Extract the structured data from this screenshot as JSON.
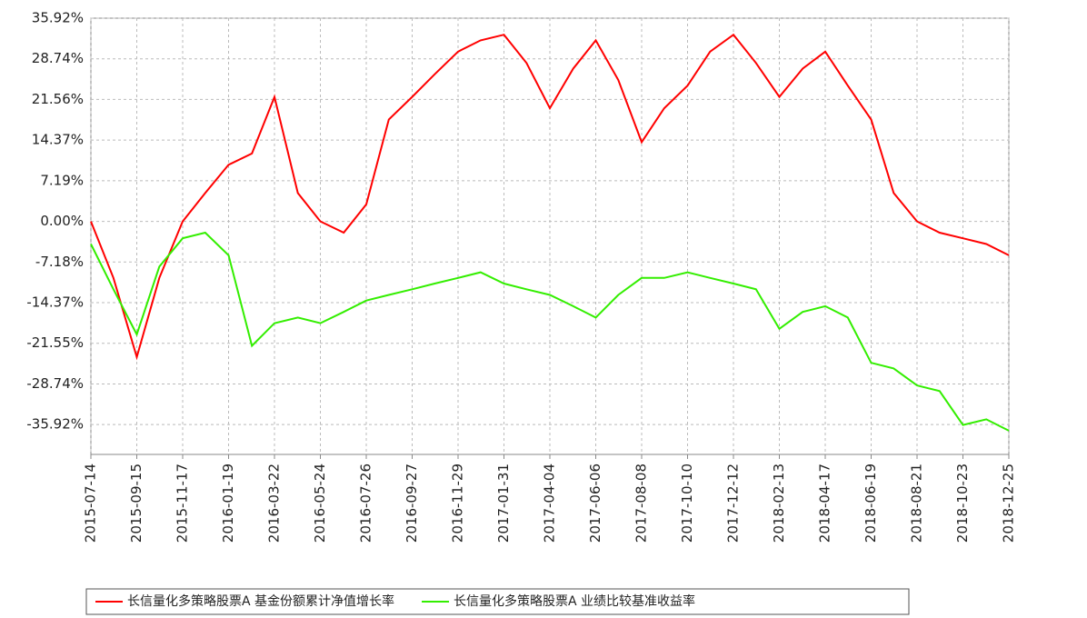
{
  "chart_data": {
    "type": "line",
    "x": [
      "2015-07-14",
      "2015-08-14",
      "2015-09-15",
      "2015-10-16",
      "2015-11-17",
      "2015-12-18",
      "2016-01-19",
      "2016-02-20",
      "2016-03-22",
      "2016-04-23",
      "2016-05-24",
      "2016-06-25",
      "2016-07-26",
      "2016-08-26",
      "2016-09-27",
      "2016-10-28",
      "2016-11-29",
      "2016-12-30",
      "2017-01-31",
      "2017-03-03",
      "2017-04-04",
      "2017-05-06",
      "2017-06-06",
      "2017-07-07",
      "2017-08-08",
      "2017-09-08",
      "2017-10-10",
      "2017-11-10",
      "2017-12-12",
      "2018-01-12",
      "2018-02-13",
      "2018-03-17",
      "2018-04-17",
      "2018-05-18",
      "2018-06-19",
      "2018-07-20",
      "2018-08-21",
      "2018-09-21",
      "2018-10-23",
      "2018-11-24",
      "2018-12-25"
    ],
    "series": [
      {
        "name": "长信量化多策略股票A  基金份额累计净值增长率",
        "color": "#ff0000",
        "values": [
          0,
          -10,
          -24,
          -10,
          0,
          5,
          10,
          12,
          22,
          5,
          0,
          -2,
          3,
          18,
          22,
          26,
          30,
          32,
          33,
          28,
          20,
          27,
          32,
          25,
          14,
          20,
          24,
          30,
          33,
          28,
          22,
          27,
          30,
          24,
          18,
          5,
          0,
          -2,
          -3,
          -4,
          -6
        ]
      },
      {
        "name": "长信量化多策略股票A  业绩比较基准收益率",
        "color": "#33ee00",
        "values": [
          -4,
          -12,
          -20,
          -8,
          -3,
          -2,
          -6,
          -22,
          -18,
          -17,
          -18,
          -16,
          -14,
          -13,
          -12,
          -11,
          -10,
          -9,
          -11,
          -12,
          -13,
          -15,
          -17,
          -13,
          -10,
          -10,
          -9,
          -10,
          -11,
          -12,
          -19,
          -16,
          -15,
          -17,
          -25,
          -26,
          -29,
          -30,
          -36,
          -35,
          -37
        ]
      }
    ],
    "xlim": [
      "2015-07-14",
      "2018-12-25"
    ],
    "xticks": [
      "2015-07-14",
      "2015-09-15",
      "2015-11-17",
      "2016-01-19",
      "2016-03-22",
      "2016-05-24",
      "2016-07-26",
      "2016-09-27",
      "2016-11-29",
      "2017-01-31",
      "2017-04-04",
      "2017-06-06",
      "2017-08-08",
      "2017-10-10",
      "2017-12-12",
      "2018-02-13",
      "2018-04-17",
      "2018-06-19",
      "2018-08-21",
      "2018-10-23",
      "2018-12-25"
    ],
    "ylim": [
      -41.2,
      35.92
    ],
    "yticks": [
      {
        "value": 35.92,
        "label": "35.92%"
      },
      {
        "value": 28.74,
        "label": "28.74%"
      },
      {
        "value": 21.56,
        "label": "21.56%"
      },
      {
        "value": 14.37,
        "label": "14.37%"
      },
      {
        "value": 7.19,
        "label": "7.19%"
      },
      {
        "value": 0,
        "label": "0.00%"
      },
      {
        "value": -7.18,
        "label": "-7.18%"
      },
      {
        "value": -14.37,
        "label": "-14.37%"
      },
      {
        "value": -21.55,
        "label": "-21.55%"
      },
      {
        "value": -28.74,
        "label": "-28.74%"
      },
      {
        "value": -35.92,
        "label": "-35.92%"
      }
    ],
    "grid": true
  }
}
